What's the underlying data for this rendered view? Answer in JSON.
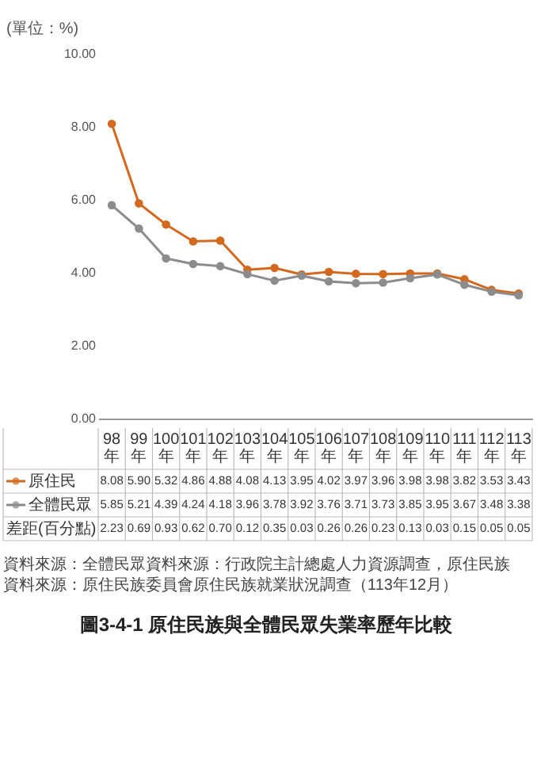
{
  "chart_data": {
    "type": "line",
    "title": "圖3-4-1 原住民族與全體民眾失業率歷年比較",
    "ylabel": "(單位：%)",
    "categories": [
      "98年",
      "99年",
      "100年",
      "101年",
      "102年",
      "103年",
      "104年",
      "105年",
      "106年",
      "107年",
      "108年",
      "109年",
      "110年",
      "111年",
      "112年",
      "113年"
    ],
    "series": [
      {
        "name": "原住民",
        "color": "#d2691e",
        "values": [
          8.08,
          5.9,
          5.32,
          4.86,
          4.88,
          4.08,
          4.13,
          3.95,
          4.02,
          3.97,
          3.96,
          3.98,
          3.98,
          3.82,
          3.53,
          3.43
        ],
        "value_labels": [
          "8.08",
          "5.90",
          "5.32",
          "4.86",
          "4.88",
          "4.08",
          "4.13",
          "3.95",
          "4.02",
          "3.97",
          "3.96",
          "3.98",
          "3.98",
          "3.82",
          "3.53",
          "3.43"
        ]
      },
      {
        "name": "全體民眾",
        "color": "#8c8c8c",
        "values": [
          5.85,
          5.21,
          4.39,
          4.24,
          4.18,
          3.96,
          3.78,
          3.92,
          3.76,
          3.71,
          3.73,
          3.85,
          3.95,
          3.67,
          3.48,
          3.38
        ],
        "value_labels": [
          "5.85",
          "5.21",
          "4.39",
          "4.24",
          "4.18",
          "3.96",
          "3.78",
          "3.92",
          "3.76",
          "3.71",
          "3.73",
          "3.85",
          "3.95",
          "3.67",
          "3.48",
          "3.38"
        ]
      }
    ],
    "ylim": [
      0,
      10
    ],
    "yticks": [
      {
        "value": 0,
        "label": "0.00"
      },
      {
        "value": 2,
        "label": "2.00"
      },
      {
        "value": 4,
        "label": "4.00"
      },
      {
        "value": 6,
        "label": "6.00"
      },
      {
        "value": 8,
        "label": "8.00"
      },
      {
        "value": 10,
        "label": "10.00"
      }
    ],
    "marker": "circle",
    "legend": "bottom left",
    "annotations": [
      "差距(百分點)",
      "2.23",
      "0.69",
      "0.93",
      "0.62",
      "0.70",
      "0.12",
      "0.35",
      "0.03",
      "0.26",
      "0.26",
      "0.23",
      "0.13",
      "0.03",
      "0.15",
      "0.05",
      "0.05",
      "資料來源：全體民眾資料來源：行政院主計總處人力資源調查，原住民族資料來源：原住民族委員會原住民族就業狀況調查（113年12月）"
    ]
  }
}
